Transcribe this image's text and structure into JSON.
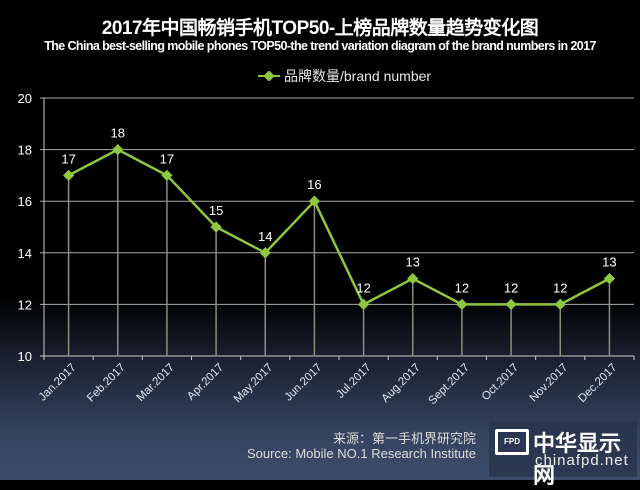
{
  "chart_data": {
    "type": "line",
    "title": "2017年中国畅销手机TOP50-上榜品牌数量趋势变化图",
    "subtitle": "The China best-selling mobile phones TOP50-the trend variation diagram of the brand numbers in 2017",
    "categories": [
      "Jan.2017",
      "Feb.2017",
      "Mar.2017",
      "Apr.2017",
      "May.2017",
      "Jun.2017",
      "Jul.2017",
      "Aug.2017",
      "Sept.2017",
      "Oct.2017",
      "Nov.2017",
      "Dec.2017"
    ],
    "series": [
      {
        "name": "品牌数量/brand number",
        "values": [
          17,
          18,
          17,
          15,
          14,
          16,
          12,
          13,
          12,
          12,
          12,
          13
        ],
        "color": "#8dc63f"
      }
    ],
    "yticks": [
      10,
      12,
      14,
      16,
      18,
      20
    ],
    "ylim": [
      10,
      20
    ],
    "grid": true,
    "data_labels": true,
    "legend": "top"
  },
  "source": {
    "cn": "来源：第一手机界研究院",
    "en": "Source: Mobile NO.1 Research Institute"
  },
  "watermark": {
    "cn": "中华显示网",
    "en": "chinafpd.net",
    "badge": "FPD"
  }
}
